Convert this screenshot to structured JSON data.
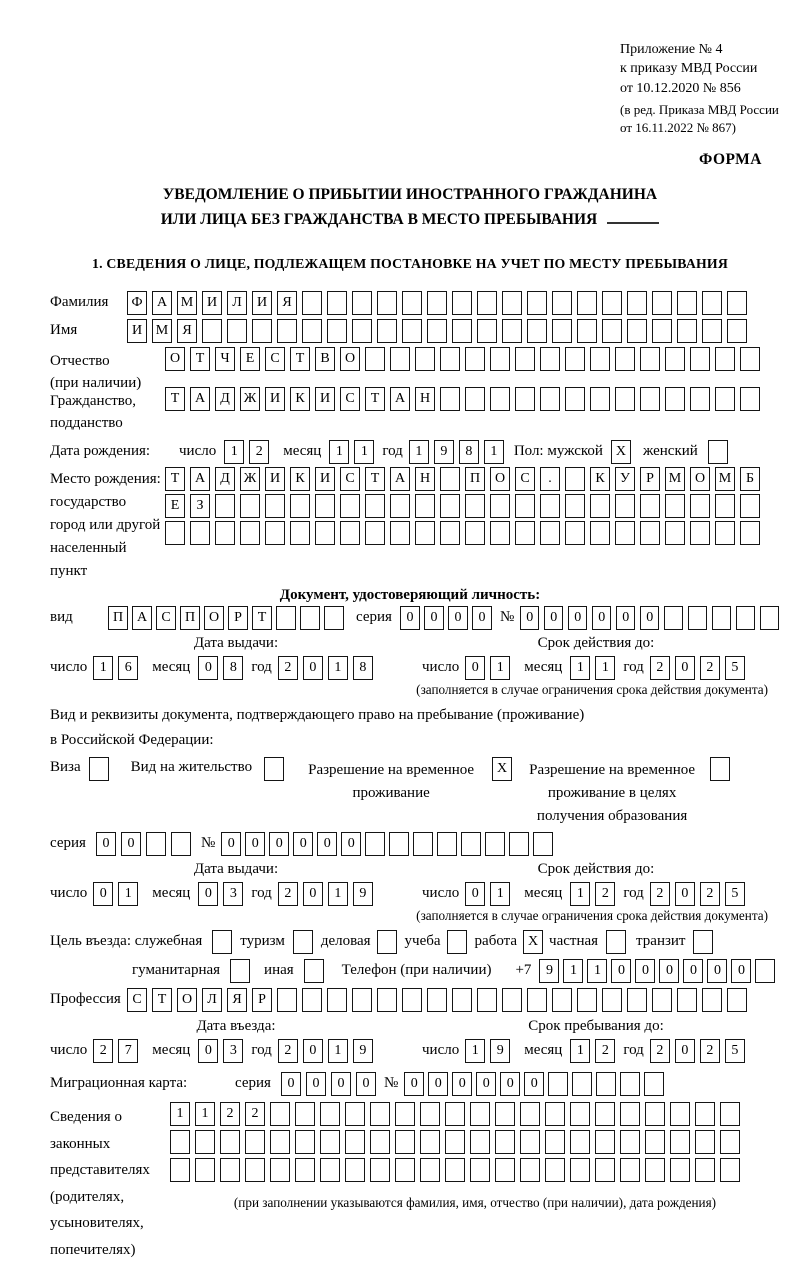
{
  "header": {
    "appendix": [
      "Приложение № 4",
      "к приказу МВД России",
      "от 10.12.2020 № 856"
    ],
    "amendment": [
      "(в ред. Приказа МВД России",
      "от 16.11.2022 № 867)"
    ],
    "form_label": "ФОРМА"
  },
  "title": {
    "line1": "УВЕДОМЛЕНИЕ О ПРИБЫТИИ ИНОСТРАННОГО ГРАЖДАНИНА",
    "line2": "ИЛИ ЛИЦА БЕЗ ГРАЖДАНСТВА В МЕСТО ПРЕБЫВАНИЯ"
  },
  "section1_heading": "1. СВЕДЕНИЯ О ЛИЦЕ, ПОДЛЕЖАЩЕМ ПОСТАНОВКЕ НА УЧЕТ ПО МЕСТУ ПРЕБЫВАНИЯ",
  "labels": {
    "surname": "Фамилия",
    "name": "Имя",
    "patronymic_1": "Отчество",
    "patronymic_2": "(при наличии)",
    "citizenship_1": "Гражданство,",
    "citizenship_2": "подданство",
    "birth_date": "Дата рождения:",
    "day": "число",
    "month": "месяц",
    "year": "год",
    "sex_male": "Пол: мужской",
    "sex_female": "женский",
    "birthplace_1": "Место рождения:",
    "birthplace_2": "государство",
    "birthplace_3": "город или другой",
    "birthplace_4": "населенный пункт",
    "id_doc_heading": "Документ, удостоверяющий личность:",
    "doc_type": "вид",
    "series": "серия",
    "number": "№",
    "issue_date": "Дата выдачи:",
    "expiry_date": "Срок действия до:",
    "expiry_note": "(заполняется в случае ограничения срока действия документа)",
    "residence_doc_line1": "Вид и реквизиты документа, подтверждающего право на пребывание (проживание)",
    "residence_doc_line2": "в Российской Федерации:",
    "visa": "Виза",
    "residence_permit": "Вид на жительство",
    "temp_residence_1": "Разрешение на временное",
    "temp_residence_2": "проживание",
    "temp_residence_edu_1": "Разрешение на временное",
    "temp_residence_edu_2": "проживание в целях",
    "temp_residence_edu_3": "получения образования",
    "purpose_prefix": "Цель въезда: служебная",
    "tourism": "туризм",
    "business": "деловая",
    "study": "учеба",
    "work": "работа",
    "private": "частная",
    "transit": "транзит",
    "humanitarian": "гуманитарная",
    "other": "иная",
    "phone": "Телефон (при наличии)",
    "phone_prefix": "+7",
    "profession": "Профессия",
    "entry_date": "Дата въезда:",
    "stay_until": "Срок пребывания до:",
    "migration_card": "Миграционная карта:",
    "reps_1": "Сведения о",
    "reps_2": "законных",
    "reps_3": "представителях",
    "reps_4": "(родителях,",
    "reps_5": "усыновителях,",
    "reps_6": "попечителях)",
    "reps_note": "(при заполнении указываются фамилия, имя, отчество (при наличии), дата рождения)"
  },
  "fields": {
    "surname": {
      "value": "ФАМИЛИЯ",
      "cells": 25
    },
    "name": {
      "value": "ИМЯ",
      "cells": 25
    },
    "patronymic": {
      "value": "ОТЧЕСТВО",
      "cells": 24
    },
    "citizenship": {
      "value": "ТАДЖИКИСТАН",
      "cells": 24
    },
    "birth_day": {
      "value": "12",
      "cells": 2
    },
    "birth_month": {
      "value": "11",
      "cells": 2
    },
    "birth_year": {
      "value": "1981",
      "cells": 4
    },
    "sex_male": {
      "value": "X",
      "cells": 1
    },
    "sex_female": {
      "value": "",
      "cells": 1
    },
    "birthplace_row1": {
      "value": "ТАДЖИКИСТАН ПОС. КУРМОМБ",
      "cells": 24
    },
    "birthplace_row2": {
      "value": "ЕЗ",
      "cells": 24
    },
    "birthplace_row3": {
      "value": "",
      "cells": 24
    },
    "id_doc_type": {
      "value": "ПАСПОРТ",
      "cells": 10
    },
    "id_doc_series": {
      "value": "0000",
      "cells": 4
    },
    "id_doc_number": {
      "value": "000000",
      "cells": 11
    },
    "id_issue_day": {
      "value": "16",
      "cells": 2
    },
    "id_issue_month": {
      "value": "08",
      "cells": 2
    },
    "id_issue_year": {
      "value": "2018",
      "cells": 4
    },
    "id_expiry_day": {
      "value": "01",
      "cells": 2
    },
    "id_expiry_month": {
      "value": "11",
      "cells": 2
    },
    "id_expiry_year": {
      "value": "2025",
      "cells": 4
    },
    "visa_checkbox": {
      "value": "",
      "cells": 1
    },
    "residence_permit_checkbox": {
      "value": "",
      "cells": 1
    },
    "temp_residence_checkbox": {
      "value": "X",
      "cells": 1
    },
    "temp_residence_edu_checkbox": {
      "value": "",
      "cells": 1
    },
    "permit_series": {
      "value": "00",
      "cells": 4
    },
    "permit_number": {
      "value": "000000",
      "cells": 14
    },
    "permit_issue_day": {
      "value": "01",
      "cells": 2
    },
    "permit_issue_month": {
      "value": "03",
      "cells": 2
    },
    "permit_issue_year": {
      "value": "2019",
      "cells": 4
    },
    "permit_expiry_day": {
      "value": "01",
      "cells": 2
    },
    "permit_expiry_month": {
      "value": "12",
      "cells": 2
    },
    "permit_expiry_year": {
      "value": "2025",
      "cells": 4
    },
    "purpose_official": {
      "value": "",
      "cells": 1
    },
    "purpose_tourism": {
      "value": "",
      "cells": 1
    },
    "purpose_business": {
      "value": "",
      "cells": 1
    },
    "purpose_study": {
      "value": "",
      "cells": 1
    },
    "purpose_work": {
      "value": "X",
      "cells": 1
    },
    "purpose_private": {
      "value": "",
      "cells": 1
    },
    "purpose_transit": {
      "value": "",
      "cells": 1
    },
    "purpose_humanitarian": {
      "value": "",
      "cells": 1
    },
    "purpose_other": {
      "value": "",
      "cells": 1
    },
    "phone": {
      "value": "911000000",
      "cells": 10
    },
    "profession": {
      "value": "СТОЛЯР",
      "cells": 25
    },
    "entry_day": {
      "value": "27",
      "cells": 2
    },
    "entry_month": {
      "value": "03",
      "cells": 2
    },
    "entry_year": {
      "value": "2019",
      "cells": 4
    },
    "stay_day": {
      "value": "19",
      "cells": 2
    },
    "stay_month": {
      "value": "12",
      "cells": 2
    },
    "stay_year": {
      "value": "2025",
      "cells": 4
    },
    "migration_series": {
      "value": "0000",
      "cells": 4
    },
    "migration_number": {
      "value": "000000",
      "cells": 11
    },
    "reps_row1": {
      "value": "1122",
      "cells": 23
    },
    "reps_row2": {
      "value": "",
      "cells": 23
    },
    "reps_row3": {
      "value": "",
      "cells": 23
    }
  }
}
